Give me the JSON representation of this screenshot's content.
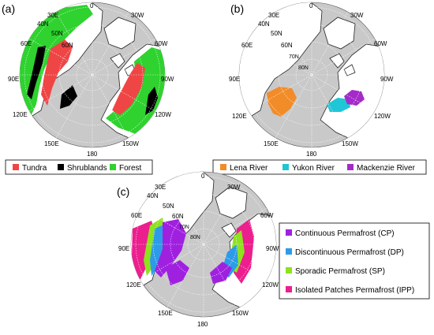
{
  "colors": {
    "ocean": "#c9c9c9",
    "land": "#ffffff",
    "tundra": "#f04545",
    "shrublands": "#000000",
    "forest": "#2fd22f",
    "lena": "#f28c28",
    "yukon": "#1fc6d6",
    "mackenzie": "#a42bc9",
    "cp": "#a020e0",
    "dp": "#2d9be8",
    "sp": "#8ee21e",
    "ipp": "#ec1f8e"
  },
  "panels": {
    "a": {
      "label": "(a)",
      "coords": [
        "0",
        "30E",
        "40N",
        "50N",
        "60E",
        "60N",
        "30W",
        "60W",
        "90W",
        "90E",
        "120E",
        "120W",
        "150E",
        "180",
        "150W"
      ],
      "legend": [
        "Tundra",
        "Shrublands",
        "Forest"
      ]
    },
    "b": {
      "label": "(b)",
      "coords": [
        "0",
        "30E",
        "40N",
        "50N",
        "60E",
        "60N",
        "70N",
        "80N",
        "30W",
        "60W",
        "90W",
        "90E",
        "120E",
        "120W",
        "150E",
        "180",
        "150W"
      ],
      "legend": [
        "Lena River",
        "Yukon River",
        "Mackenzie River"
      ]
    },
    "c": {
      "label": "(c)",
      "coords": [
        "0",
        "30E",
        "40N",
        "50N",
        "60E",
        "60N",
        "70N",
        "80N",
        "30W",
        "60W",
        "90W",
        "90E",
        "120E",
        "120W",
        "150E",
        "180",
        "150W"
      ],
      "legend": [
        "Continuous Permafrost (CP)",
        "Discontinuous Permafrost (DP)",
        "Sporadic Permafrost (SP)",
        "Isolated Patches Permafrost (IPP)"
      ]
    }
  }
}
